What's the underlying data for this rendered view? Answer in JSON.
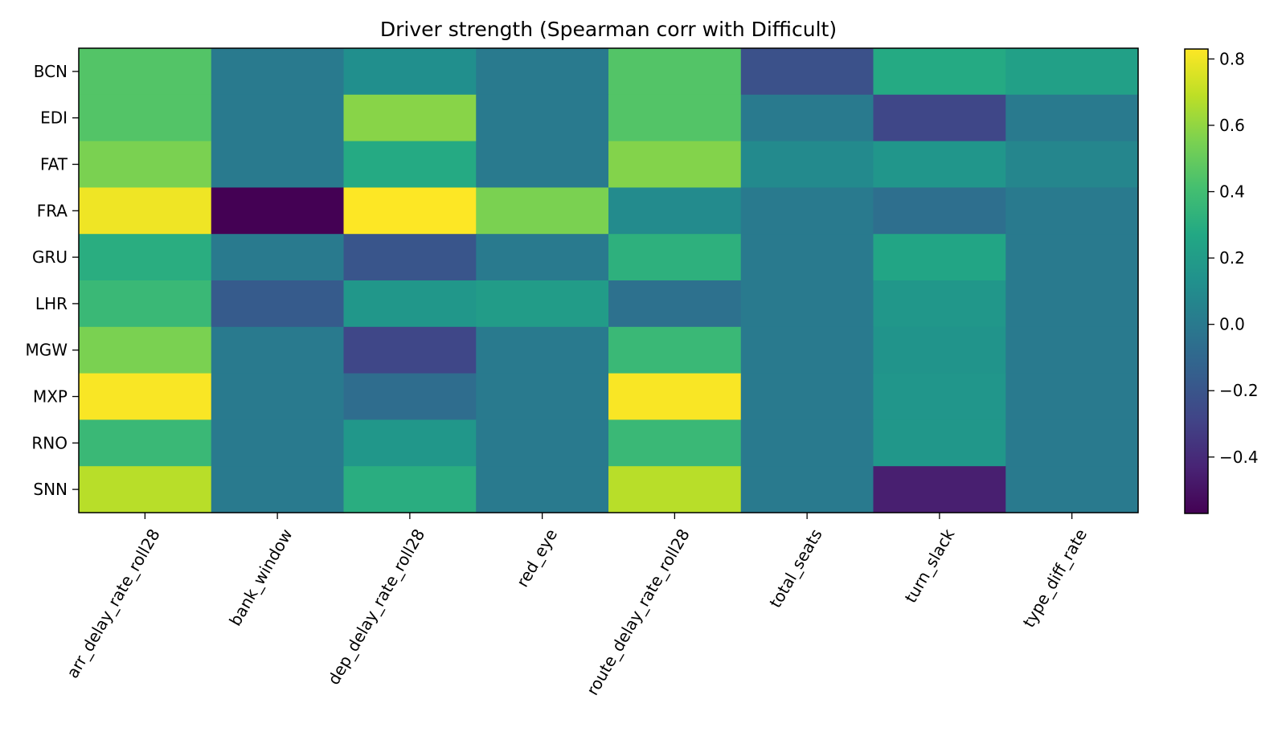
{
  "chart_data": {
    "type": "heatmap",
    "title": "Driver strength (Spearman corr with Difficult)",
    "xlabel": "",
    "ylabel": "",
    "columns": [
      "arr_delay_rate_roll28",
      "bank_window",
      "dep_delay_rate_roll28",
      "red_eye",
      "route_delay_rate_roll28",
      "total_seats",
      "turn_slack",
      "type_diff_rate"
    ],
    "rows": [
      "BCN",
      "EDI",
      "FAT",
      "FRA",
      "GRU",
      "LHR",
      "MGW",
      "MXP",
      "RNO",
      "SNN"
    ],
    "values": [
      [
        0.45,
        0.0,
        0.12,
        0.0,
        0.45,
        -0.22,
        0.28,
        0.22
      ],
      [
        0.45,
        0.0,
        0.58,
        0.0,
        0.45,
        0.0,
        -0.27,
        0.0
      ],
      [
        0.55,
        0.0,
        0.28,
        0.0,
        0.57,
        0.09,
        0.16,
        0.07
      ],
      [
        0.8,
        -0.57,
        0.83,
        0.55,
        0.1,
        0.0,
        -0.06,
        0.0
      ],
      [
        0.3,
        0.0,
        -0.2,
        0.0,
        0.32,
        0.0,
        0.25,
        0.0
      ],
      [
        0.37,
        -0.17,
        0.17,
        0.2,
        -0.05,
        0.0,
        0.17,
        0.0
      ],
      [
        0.55,
        0.0,
        -0.27,
        0.0,
        0.37,
        0.0,
        0.15,
        0.0
      ],
      [
        0.82,
        0.0,
        -0.07,
        0.0,
        0.82,
        0.0,
        0.16,
        0.0
      ],
      [
        0.37,
        0.0,
        0.17,
        0.0,
        0.37,
        0.0,
        0.17,
        0.0
      ],
      [
        0.68,
        0.0,
        0.3,
        0.0,
        0.68,
        0.0,
        -0.45,
        0.0
      ]
    ],
    "vmin": -0.57,
    "vmax": 0.83,
    "colormap": "viridis",
    "colorbar": {
      "ticks": [
        0.8,
        0.6,
        0.4,
        0.2,
        0.0,
        -0.2,
        -0.4
      ],
      "tick_labels": [
        "0.8",
        "0.6",
        "0.4",
        "0.2",
        "0.0",
        "−0.2",
        "−0.4"
      ]
    },
    "grid": false,
    "legend": "colorbar-right"
  }
}
